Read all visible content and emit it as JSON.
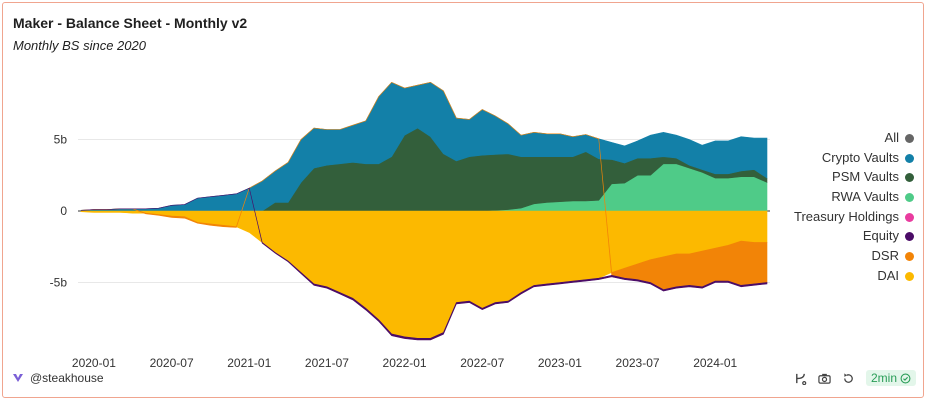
{
  "header": {
    "title": "Maker - Balance Sheet - Monthly v2",
    "subtitle": "Monthly BS since 2020"
  },
  "footer": {
    "author": "@steakhouse",
    "refresh_badge": "2min"
  },
  "icons": {
    "author_logo": "steakhouse-logo-icon",
    "actions": [
      "fork-icon",
      "camera-icon",
      "refresh-icon",
      "check-circle-icon"
    ]
  },
  "chart_data": {
    "type": "area",
    "stacked": true,
    "title": "",
    "xlabel": "",
    "ylabel": "",
    "ylim": [
      -10,
      10
    ],
    "y_ticks": [
      5,
      0,
      -5
    ],
    "y_tick_labels": [
      "5b",
      "0",
      "-5b"
    ],
    "x_ticks": [
      "2020-01",
      "2020-07",
      "2021-01",
      "2021-07",
      "2022-01",
      "2022-07",
      "2023-01",
      "2023-07",
      "2024-01"
    ],
    "legend_position": "right",
    "x": [
      "2019-12",
      "2020-01",
      "2020-02",
      "2020-03",
      "2020-04",
      "2020-05",
      "2020-06",
      "2020-07",
      "2020-08",
      "2020-09",
      "2020-10",
      "2020-11",
      "2020-12",
      "2021-01",
      "2021-02",
      "2021-03",
      "2021-04",
      "2021-05",
      "2021-06",
      "2021-07",
      "2021-08",
      "2021-09",
      "2021-10",
      "2021-11",
      "2021-12",
      "2022-01",
      "2022-02",
      "2022-03",
      "2022-04",
      "2022-05",
      "2022-06",
      "2022-07",
      "2022-08",
      "2022-09",
      "2022-10",
      "2022-11",
      "2022-12",
      "2023-01",
      "2023-02",
      "2023-03",
      "2023-04",
      "2023-05",
      "2023-06",
      "2023-07",
      "2023-08",
      "2023-09",
      "2023-10",
      "2023-11",
      "2023-12",
      "2024-01",
      "2024-02",
      "2024-03",
      "2024-04",
      "2024-05"
    ],
    "legend": [
      {
        "name": "All",
        "color": "#666666"
      },
      {
        "name": "Crypto Vaults",
        "color": "#1380a8"
      },
      {
        "name": "PSM Vaults",
        "color": "#335f3b"
      },
      {
        "name": "RWA Vaults",
        "color": "#4fcb88"
      },
      {
        "name": "Treasury Holdings",
        "color": "#e93c9f"
      },
      {
        "name": "Equity",
        "color": "#4b0c67"
      },
      {
        "name": "DSR",
        "color": "#f28407"
      },
      {
        "name": "DAI",
        "color": "#fcb900"
      }
    ],
    "series": [
      {
        "name": "RWA Vaults",
        "color": "#4fcb88",
        "values": [
          0,
          0,
          0,
          0,
          0,
          0,
          0,
          0,
          0,
          0,
          0,
          0,
          0,
          0,
          0,
          0,
          0,
          0,
          0,
          0,
          0,
          0,
          0,
          0,
          0,
          0,
          0,
          0,
          0,
          0,
          0,
          0,
          0.05,
          0.1,
          0.2,
          0.5,
          0.6,
          0.65,
          0.7,
          0.7,
          0.75,
          1.9,
          1.95,
          2.5,
          2.5,
          3.3,
          3.3,
          3.0,
          2.7,
          2.3,
          2.3,
          2.4,
          2.4,
          2.0
        ]
      },
      {
        "name": "PSM Vaults",
        "color": "#335f3b",
        "values": [
          0,
          0,
          0,
          0,
          0,
          0,
          0,
          0,
          0,
          0,
          0,
          0,
          0,
          0,
          0,
          0.6,
          0.6,
          2.0,
          3.0,
          3.2,
          3.3,
          3.4,
          3.3,
          3.3,
          3.8,
          5.3,
          5.8,
          5.2,
          4.0,
          3.5,
          3.8,
          3.9,
          3.9,
          3.9,
          3.6,
          3.3,
          3.2,
          3.15,
          3.1,
          3.45,
          2.9,
          1.7,
          1.4,
          1.2,
          1.2,
          0.5,
          0.4,
          0.2,
          0.2,
          0.3,
          0.3,
          0.4,
          0.5,
          0.3
        ]
      },
      {
        "name": "Crypto Vaults",
        "color": "#1380a8",
        "values": [
          0.05,
          0.1,
          0.1,
          0.15,
          0.15,
          0.15,
          0.2,
          0.4,
          0.45,
          0.9,
          1.0,
          1.1,
          1.2,
          1.6,
          2.1,
          2.2,
          2.8,
          3.0,
          2.8,
          2.5,
          2.4,
          2.6,
          3.0,
          4.7,
          5.2,
          3.3,
          3.0,
          3.8,
          4.4,
          3.0,
          2.6,
          3.2,
          2.7,
          2.1,
          1.5,
          1.7,
          1.6,
          1.6,
          1.4,
          1.2,
          1.4,
          1.2,
          1.2,
          1.2,
          1.6,
          1.7,
          1.6,
          1.8,
          1.7,
          2.3,
          2.3,
          2.4,
          2.2,
          2.8
        ]
      },
      {
        "name": "Treasury Holdings",
        "color": "#e93c9f",
        "values": [
          0,
          0,
          0,
          0,
          0,
          0,
          0,
          0,
          0,
          0,
          0,
          0,
          0,
          0,
          0,
          0,
          0,
          0,
          0,
          0,
          0,
          0,
          0,
          0,
          0,
          0,
          0,
          0,
          0,
          0,
          0,
          0,
          0,
          0,
          0,
          0,
          0,
          0,
          0,
          0,
          0,
          0,
          0,
          0,
          0,
          0,
          0,
          0,
          0,
          0,
          0,
          0,
          0,
          0
        ]
      },
      {
        "name": "DAI",
        "color": "#fcb900",
        "values": [
          -0.05,
          -0.1,
          -0.1,
          -0.1,
          -0.15,
          -0.15,
          -0.25,
          -0.35,
          -0.4,
          -0.8,
          -0.9,
          -1.0,
          -1.1,
          -1.5,
          -2.2,
          -2.9,
          -3.5,
          -4.3,
          -5.1,
          -5.3,
          -5.7,
          -6.1,
          -6.8,
          -7.6,
          -8.6,
          -8.8,
          -8.9,
          -8.9,
          -8.5,
          -6.4,
          -6.3,
          -6.8,
          -6.4,
          -6.3,
          -5.7,
          -5.2,
          -5.1,
          -5.0,
          -4.9,
          -4.8,
          -4.7,
          -4.3,
          -4.0,
          -3.7,
          -3.4,
          -3.2,
          -3.0,
          -3.0,
          -2.8,
          -2.6,
          -2.4,
          -2.1,
          -2.2,
          -2.2
        ]
      },
      {
        "name": "DSR",
        "color": "#f28407",
        "values": [
          0,
          0,
          0,
          0,
          0,
          -0.05,
          -0.05,
          -0.1,
          -0.1,
          -0.05,
          -0.1,
          -0.1,
          -0.05,
          0,
          0,
          0,
          0,
          0,
          0,
          0,
          0,
          0,
          0,
          0,
          0,
          0,
          0,
          0,
          0,
          0,
          0,
          0,
          0,
          0,
          0,
          0,
          0,
          0,
          0,
          0,
          0,
          -0.2,
          -0.7,
          -1.1,
          -1.6,
          -2.3,
          -2.3,
          -2.2,
          -2.5,
          -2.3,
          -2.5,
          -3.1,
          -2.9,
          -2.8
        ]
      },
      {
        "name": "Equity",
        "color": "#4b0c67",
        "values": [
          0,
          0,
          0,
          0,
          0,
          0,
          0,
          0,
          0,
          0,
          0,
          0,
          0,
          0,
          -0.05,
          -0.05,
          -0.05,
          -0.08,
          -0.1,
          -0.1,
          -0.1,
          -0.12,
          -0.12,
          -0.12,
          -0.12,
          -0.12,
          -0.12,
          -0.12,
          -0.12,
          -0.1,
          -0.1,
          -0.1,
          -0.1,
          -0.1,
          -0.1,
          -0.1,
          -0.1,
          -0.1,
          -0.1,
          -0.1,
          -0.1,
          -0.1,
          -0.1,
          -0.1,
          -0.1,
          -0.1,
          -0.1,
          -0.1,
          -0.1,
          -0.1,
          -0.1,
          -0.1,
          -0.1,
          -0.1
        ]
      }
    ]
  }
}
